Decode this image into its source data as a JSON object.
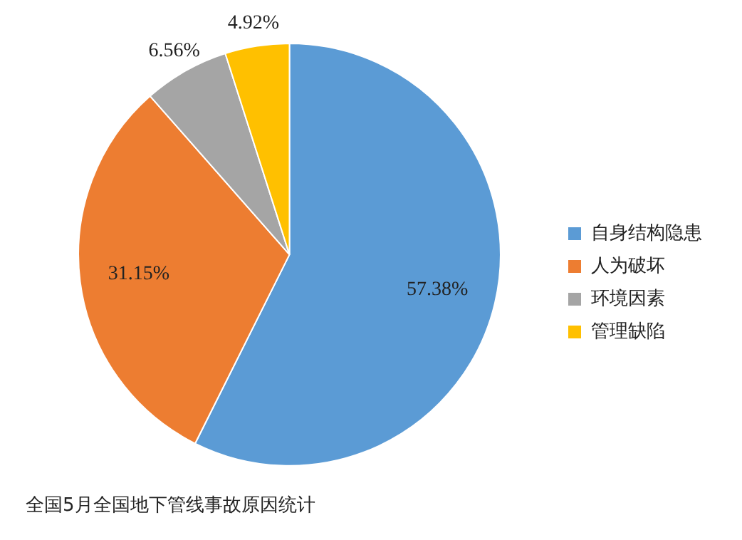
{
  "chart_data": {
    "type": "pie",
    "title": "全国5月全国地下管线事故原因统计",
    "categories": [
      "自身结构隐患",
      "人为破坏",
      "环境因素",
      "管理缺陷"
    ],
    "values": [
      57.38,
      31.15,
      6.56,
      4.92
    ],
    "colors": [
      "#5b9bd5",
      "#ed7d31",
      "#a5a5a5",
      "#ffc000"
    ],
    "value_labels": [
      "57.38%",
      "31.15%",
      "6.56%",
      "4.92%"
    ],
    "legend": "right"
  }
}
